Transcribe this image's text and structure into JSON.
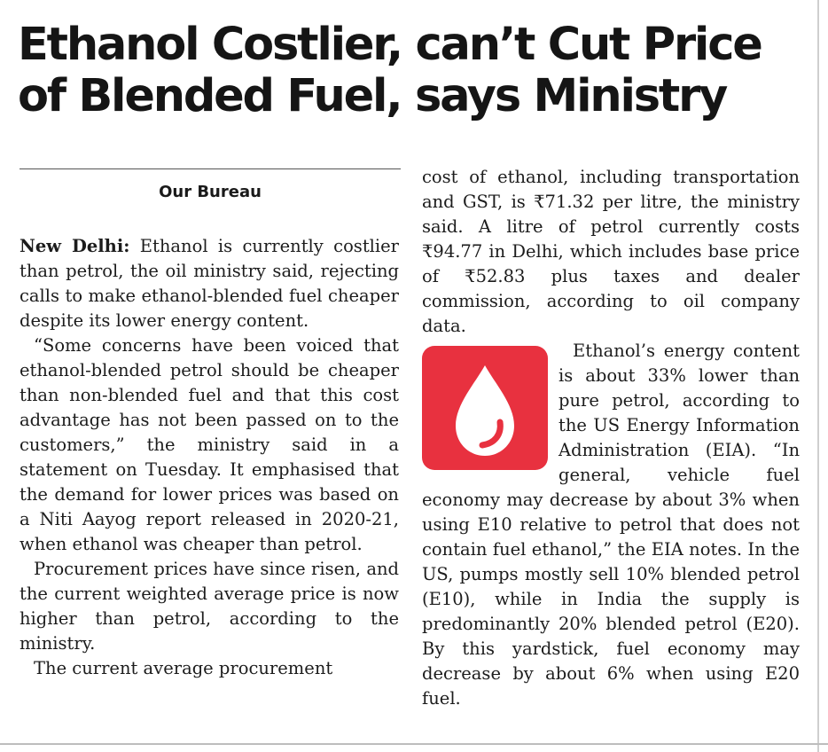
{
  "headline": {
    "line1": "Ethanol Costlier, can’t Cut Price",
    "line2": "of Blended Fuel, says Ministry"
  },
  "byline": "Our Bureau",
  "left_column": {
    "dateline": "New Delhi:",
    "p1_text": "Ethanol is currently costlier than petrol, the oil ministry said, rejecting calls to make ethanol-blended fuel cheaper despite its lower energy content.",
    "p2": "“Some concerns have been voiced that ethanol-blended petrol should be cheaper than non-blended fuel and that this cost advantage has not been passed on to the customers,” the ministry said in a statement on Tuesday. It emphasised that the demand for lower prices was based on a Niti Aayog report released in 2020-21, when ethanol was cheaper than petrol.",
    "p3": "Procurement prices have since risen, and the current weighted average price is now higher than petrol, according to the ministry.",
    "p4": "The current average procurement"
  },
  "right_column": {
    "p1": "cost of ethanol, including transportation and GST, is ₹71.32 per litre, the ministry said. A litre of petrol currently costs ₹94.77 in Delhi, which includes base price of ₹52.83 plus taxes and dealer commission, according to oil company data.",
    "p2": "Ethanol’s energy content is about 33% lower than pure petrol, according to the US Energy Information Administration (EIA). “In general, vehicle fuel economy may decrease by about 3% when using E10 relative to petrol that does not contain fuel ethanol,” the EIA notes. In the US, pumps mostly sell 10% blended petrol (E10), while in India the supply is predominantly 20% blended petrol (E20). By this yardstick, fuel economy may decrease by about 6% when using E20 fuel."
  },
  "icon": {
    "name": "fuel-drop-icon",
    "bg_color": "#e8313f",
    "fg_color": "#ffffff"
  }
}
